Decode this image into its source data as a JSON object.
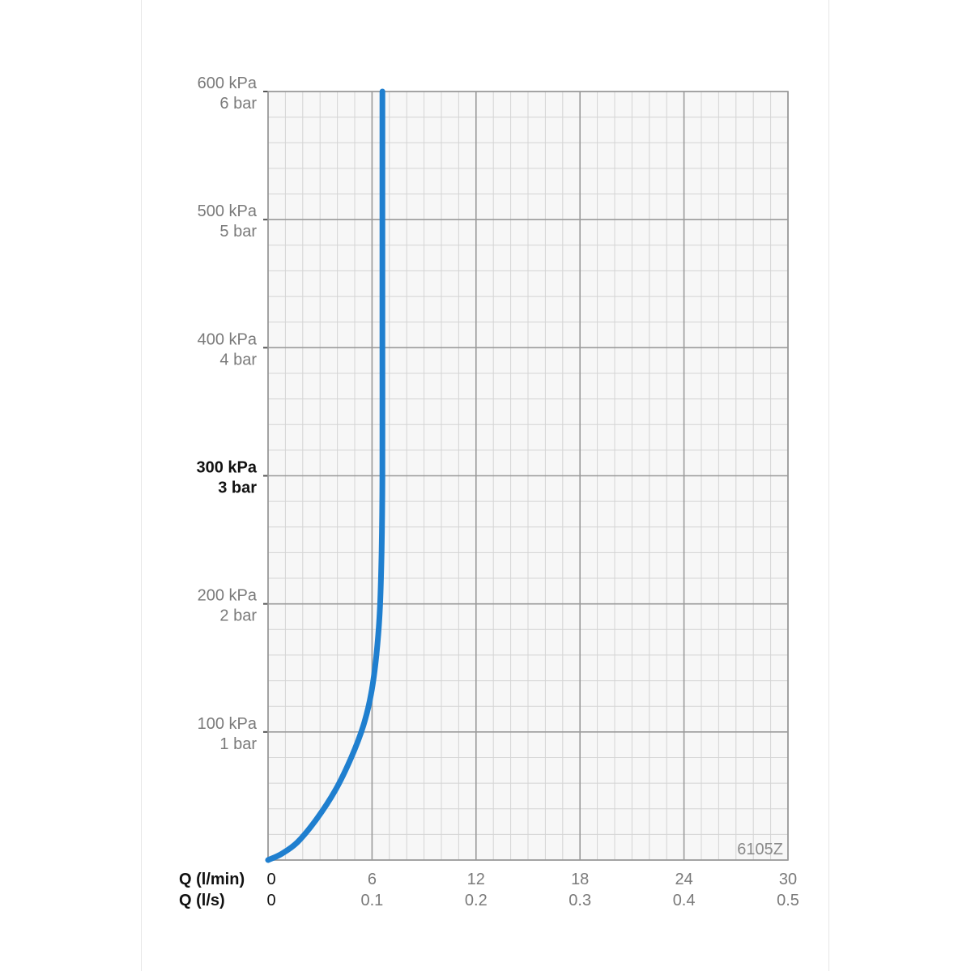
{
  "chart_data": {
    "type": "line",
    "title": "",
    "product_code": "6105Z",
    "colors": {
      "curve": "#1f7fcf",
      "grid_major": "#9a9a9a",
      "grid_minor": "#d4d4d4",
      "plot_bg": "#f7f7f7"
    },
    "y_axis": {
      "range": [
        0,
        600
      ],
      "unit": "kPa",
      "ticks": [
        {
          "value": 600,
          "kpa": "600 kPa",
          "bar": "6 bar",
          "bold": false
        },
        {
          "value": 500,
          "kpa": "500 kPa",
          "bar": "5 bar",
          "bold": false
        },
        {
          "value": 400,
          "kpa": "400 kPa",
          "bar": "4 bar",
          "bold": false
        },
        {
          "value": 300,
          "kpa": "300 kPa",
          "bar": "3 bar",
          "bold": true
        },
        {
          "value": 200,
          "kpa": "200 kPa",
          "bar": "2 bar",
          "bold": false
        },
        {
          "value": 100,
          "kpa": "100 kPa",
          "bar": "1 bar",
          "bold": false
        }
      ],
      "minor_per_major": 5
    },
    "x_axis": {
      "range": [
        0,
        30
      ],
      "unit": "l/min",
      "label_lmin": "Q (l/min)",
      "label_ls": "Q (l/s)",
      "ticks": [
        {
          "value": 0,
          "lmin": "0",
          "ls": "0"
        },
        {
          "value": 6,
          "lmin": "6",
          "ls": "0.1"
        },
        {
          "value": 12,
          "lmin": "12",
          "ls": "0.2"
        },
        {
          "value": 18,
          "lmin": "18",
          "ls": "0.3"
        },
        {
          "value": 24,
          "lmin": "24",
          "ls": "0.4"
        },
        {
          "value": 30,
          "lmin": "30",
          "ls": "0.5"
        }
      ],
      "minor_per_major": 6
    },
    "series": [
      {
        "points": [
          [
            0,
            0
          ],
          [
            0.8,
            5
          ],
          [
            1.7,
            14
          ],
          [
            2.8,
            32
          ],
          [
            3.9,
            55
          ],
          [
            4.8,
            80
          ],
          [
            5.5,
            105
          ],
          [
            5.95,
            130
          ],
          [
            6.25,
            160
          ],
          [
            6.45,
            195
          ],
          [
            6.55,
            240
          ],
          [
            6.6,
            300
          ],
          [
            6.6,
            400
          ],
          [
            6.6,
            500
          ],
          [
            6.6,
            600
          ]
        ]
      }
    ]
  }
}
